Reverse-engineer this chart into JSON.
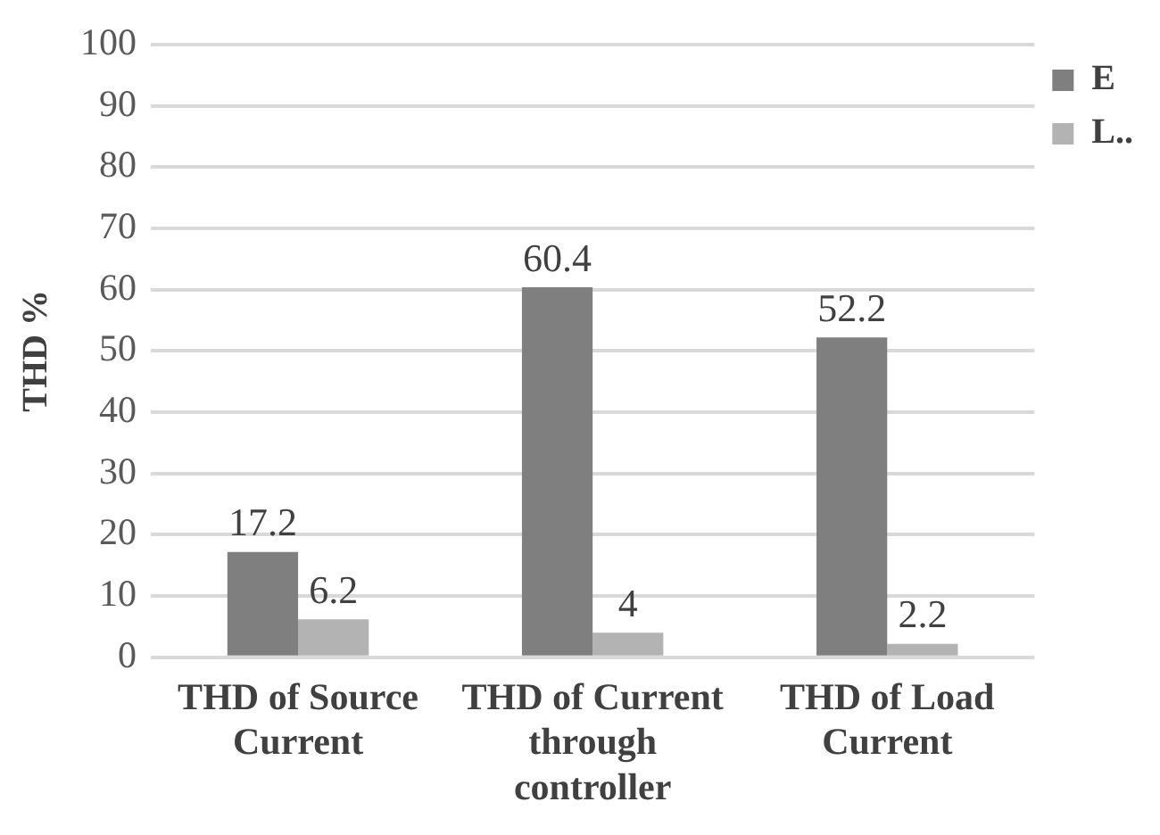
{
  "chart_data": {
    "type": "bar",
    "ylabel": "THD %",
    "categories": [
      "THD of Source Current",
      "THD of Current through controller",
      "THD of Load Current"
    ],
    "series": [
      {
        "name": "E",
        "color": "#7f7f7f",
        "values": [
          17.2,
          60.4,
          52.2
        ]
      },
      {
        "name": "L..",
        "color": "#b3b3b3",
        "values": [
          6.2,
          4,
          2.2
        ]
      }
    ],
    "ylim": [
      0,
      100
    ],
    "yticks": [
      0,
      10,
      20,
      30,
      40,
      50,
      60,
      70,
      80,
      90,
      100
    ],
    "grid": "y",
    "legend": "right",
    "data_labels": true
  }
}
